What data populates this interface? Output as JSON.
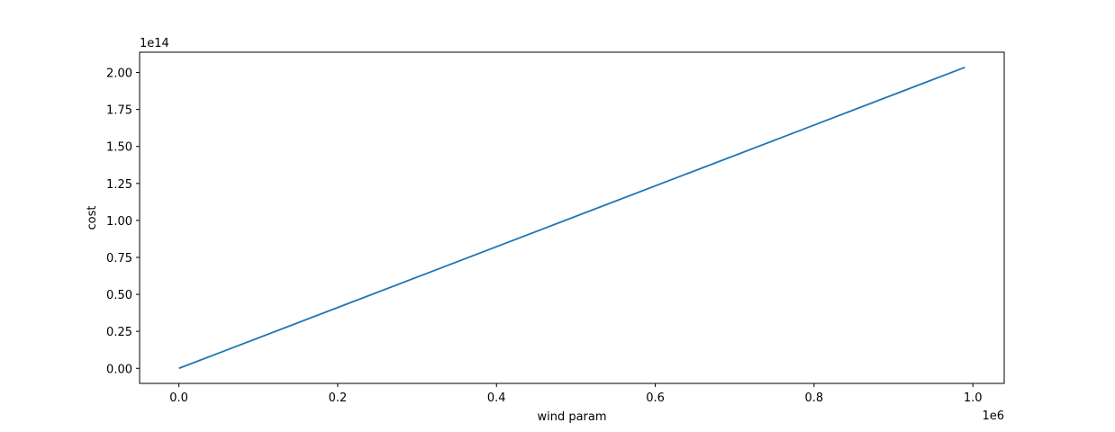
{
  "chart_data": {
    "type": "line",
    "xlabel": "wind param",
    "ylabel": "cost",
    "x_offset_label": "1e6",
    "y_offset_label": "1e14",
    "xlim": [
      -0.0495,
      1.0395
    ],
    "ylim": [
      -0.1018,
      2.1371
    ],
    "x_ticks": [
      0.0,
      0.2,
      0.4,
      0.6,
      0.8,
      1.0
    ],
    "x_tick_labels": [
      "0.0",
      "0.2",
      "0.4",
      "0.6",
      "0.8",
      "1.0"
    ],
    "y_ticks": [
      0.0,
      0.25,
      0.5,
      0.75,
      1.0,
      1.25,
      1.5,
      1.75,
      2.0
    ],
    "y_tick_labels": [
      "0.00",
      "0.25",
      "0.50",
      "0.75",
      "1.00",
      "1.25",
      "1.50",
      "1.75",
      "2.00"
    ],
    "grid": false,
    "series": [
      {
        "color": "#1f77b4",
        "x": [
          0.0,
          0.99
        ],
        "y": [
          0.0,
          2.035
        ]
      }
    ]
  }
}
